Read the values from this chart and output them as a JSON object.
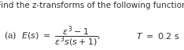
{
  "title_text": "Find the z-transforms of the following function",
  "bg_color": "#ffffff",
  "text_color": "#2d2d2d",
  "title_fontsize": 7.5,
  "math_fontsize": 8.0,
  "fig_width": 2.34,
  "fig_height": 0.64,
  "dpi": 100
}
